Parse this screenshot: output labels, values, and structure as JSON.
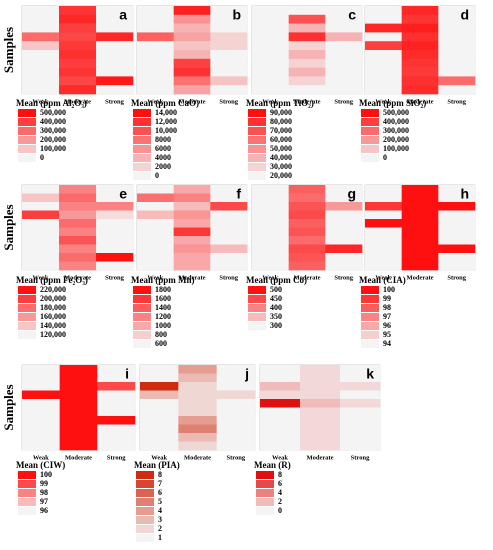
{
  "chart_data": [
    {
      "type": "heatmap",
      "label": "a",
      "y_label": "Samples",
      "categories": [
        "Weak",
        "Moderate",
        "Strong"
      ],
      "color": "#ff1010",
      "legend_title": "Mean (ppm Al₂O₃)",
      "legend_ticks": [
        {
          "value": 500000,
          "label": "500,000"
        },
        {
          "value": 400000,
          "label": "400,000"
        },
        {
          "value": 300000,
          "label": "300,000"
        },
        {
          "value": 200000,
          "label": "200,000"
        },
        {
          "value": 100000,
          "label": "100,000"
        },
        0
      ],
      "values": [
        [
          0,
          420000,
          0
        ],
        [
          0,
          450000,
          0
        ],
        [
          0,
          400000,
          0
        ],
        [
          300000,
          380000,
          450000
        ],
        [
          100000,
          410000,
          0
        ],
        [
          0,
          430000,
          0
        ],
        [
          0,
          400000,
          0
        ],
        [
          0,
          420000,
          0
        ],
        [
          0,
          380000,
          480000
        ],
        [
          0,
          440000,
          0
        ]
      ]
    },
    {
      "type": "heatmap",
      "label": "b",
      "categories": [
        "Weak",
        "Moderate",
        "Strong"
      ],
      "color": "#ff1010",
      "legend_title": "Mean (ppm CaO)",
      "legend_ticks": [
        {
          "value": 14000,
          "label": "14,000"
        },
        {
          "value": 12000,
          "label": "12,000"
        },
        {
          "value": 10000,
          "label": "10,000"
        },
        8000,
        6000,
        4000,
        2000,
        0
      ],
      "values": [
        [
          0,
          13000,
          0
        ],
        [
          0,
          6000,
          0
        ],
        [
          0,
          4000,
          0
        ],
        [
          9000,
          5000,
          2000
        ],
        [
          0,
          3000,
          2000
        ],
        [
          0,
          4000,
          0
        ],
        [
          0,
          11000,
          0
        ],
        [
          0,
          12000,
          0
        ],
        [
          0,
          8000,
          3000
        ],
        [
          0,
          5000,
          0
        ]
      ]
    },
    {
      "type": "heatmap",
      "label": "c",
      "categories": [
        "Weak",
        "Moderate",
        "Strong"
      ],
      "color": "#ff1010",
      "legend_title": "Mean (ppm TiO₂)",
      "legend_ticks": [
        {
          "value": 90000,
          "label": "90,000"
        },
        {
          "value": 80000,
          "label": "80,000"
        },
        {
          "value": 70000,
          "label": "70,000"
        },
        {
          "value": 60000,
          "label": "60,000"
        },
        {
          "value": 50000,
          "label": "50,000"
        },
        {
          "value": 40000,
          "label": "40,000"
        },
        {
          "value": 30000,
          "label": "30,000"
        },
        {
          "value": 20000,
          "label": "20,000"
        }
      ],
      "values": [
        [
          20000,
          20000,
          20000
        ],
        [
          20000,
          70000,
          20000
        ],
        [
          20000,
          40000,
          20000
        ],
        [
          20000,
          80000,
          40000
        ],
        [
          20000,
          30000,
          20000
        ],
        [
          20000,
          40000,
          20000
        ],
        [
          20000,
          30000,
          20000
        ],
        [
          20000,
          40000,
          20000
        ],
        [
          20000,
          30000,
          20000
        ],
        [
          20000,
          20000,
          20000
        ]
      ]
    },
    {
      "type": "heatmap",
      "label": "d",
      "categories": [
        "Weak",
        "Moderate",
        "Strong"
      ],
      "color": "#ff1010",
      "legend_title": "Mean (ppm SiO₂)",
      "legend_ticks": [
        {
          "value": 500000,
          "label": "500,000"
        },
        {
          "value": 400000,
          "label": "400,000"
        },
        {
          "value": 300000,
          "label": "300,000"
        },
        {
          "value": 200000,
          "label": "200,000"
        },
        {
          "value": 100000,
          "label": "100,000"
        },
        0
      ],
      "values": [
        [
          0,
          450000,
          0
        ],
        [
          0,
          420000,
          0
        ],
        [
          450000,
          470000,
          0
        ],
        [
          0,
          430000,
          0
        ],
        [
          400000,
          460000,
          0
        ],
        [
          0,
          440000,
          0
        ],
        [
          0,
          420000,
          0
        ],
        [
          0,
          410000,
          0
        ],
        [
          0,
          430000,
          300000
        ],
        [
          0,
          440000,
          0
        ]
      ]
    },
    {
      "type": "heatmap",
      "label": "e",
      "y_label": "Samples",
      "categories": [
        "Weak",
        "Moderate",
        "Strong"
      ],
      "color": "#ff1010",
      "legend_title": "Mean (ppm Fe₂O₃)",
      "legend_ticks": [
        {
          "value": 220000,
          "label": "220,000"
        },
        {
          "value": 200000,
          "label": "200,000"
        },
        {
          "value": 180000,
          "label": "180,000"
        },
        {
          "value": 160000,
          "label": "160,000"
        },
        {
          "value": 140000,
          "label": "140,000"
        },
        {
          "value": 120000,
          "label": "120,000"
        }
      ],
      "values": [
        [
          120000,
          170000,
          120000
        ],
        [
          140000,
          180000,
          120000
        ],
        [
          120000,
          170000,
          170000
        ],
        [
          200000,
          160000,
          130000
        ],
        [
          120000,
          180000,
          120000
        ],
        [
          120000,
          170000,
          120000
        ],
        [
          120000,
          190000,
          120000
        ],
        [
          120000,
          170000,
          120000
        ],
        [
          120000,
          180000,
          220000
        ],
        [
          120000,
          170000,
          120000
        ]
      ]
    },
    {
      "type": "heatmap",
      "label": "f",
      "categories": [
        "Weak",
        "Moderate",
        "Strong"
      ],
      "color": "#ff1010",
      "legend_title": "Mean (ppm Mn)",
      "legend_ticks": [
        1800,
        1600,
        1400,
        1200,
        1000,
        800,
        600
      ],
      "values": [
        [
          600,
          1000,
          600
        ],
        [
          1300,
          1200,
          600
        ],
        [
          600,
          900,
          1500
        ],
        [
          900,
          1100,
          600
        ],
        [
          600,
          1000,
          600
        ],
        [
          600,
          1600,
          600
        ],
        [
          600,
          1000,
          600
        ],
        [
          600,
          1100,
          900
        ],
        [
          600,
          1000,
          600
        ],
        [
          600,
          1000,
          600
        ]
      ]
    },
    {
      "type": "heatmap",
      "label": "g",
      "categories": [
        "Weak",
        "Moderate",
        "Strong"
      ],
      "color": "#ff1010",
      "legend_title": "Mean (ppm Co)",
      "legend_ticks": [
        500,
        450,
        400,
        350,
        300
      ],
      "values": [
        [
          300,
          430,
          300
        ],
        [
          300,
          420,
          300
        ],
        [
          300,
          440,
          380
        ],
        [
          300,
          450,
          300
        ],
        [
          300,
          430,
          300
        ],
        [
          300,
          440,
          300
        ],
        [
          300,
          420,
          300
        ],
        [
          300,
          450,
          480
        ],
        [
          300,
          440,
          300
        ],
        [
          300,
          430,
          300
        ]
      ]
    },
    {
      "type": "heatmap",
      "label": "h",
      "categories": [
        "Weak",
        "Moderate",
        "Strong"
      ],
      "color": "#ff1010",
      "legend_title": "Mean (CIA)",
      "legend_ticks": [
        100,
        99,
        98,
        97,
        96,
        95,
        94
      ],
      "values": [
        [
          94,
          100,
          94
        ],
        [
          94,
          100,
          94
        ],
        [
          99,
          100,
          100
        ],
        [
          94,
          100,
          94
        ],
        [
          100,
          100,
          94
        ],
        [
          94,
          100,
          94
        ],
        [
          94,
          100,
          94
        ],
        [
          94,
          100,
          100
        ],
        [
          94,
          100,
          94
        ],
        [
          94,
          100,
          94
        ]
      ]
    },
    {
      "type": "heatmap",
      "label": "i",
      "y_label": "Samples",
      "categories": [
        "Weak",
        "Moderate",
        "Strong"
      ],
      "color": "#ff1010",
      "legend_title": "Mean (CIW)",
      "legend_ticks": [
        100,
        99,
        98,
        97,
        96
      ],
      "values": [
        [
          96,
          100,
          96
        ],
        [
          96,
          100,
          96
        ],
        [
          96,
          100,
          99
        ],
        [
          100,
          100,
          96
        ],
        [
          96,
          100,
          96
        ],
        [
          96,
          100,
          96
        ],
        [
          96,
          100,
          100
        ],
        [
          96,
          100,
          96
        ],
        [
          96,
          100,
          96
        ],
        [
          96,
          100,
          96
        ]
      ]
    },
    {
      "type": "heatmap",
      "label": "j",
      "categories": [
        "Weak",
        "Moderate",
        "Strong"
      ],
      "color": "#d02a10",
      "legend_title": "Mean (PIA)",
      "legend_ticks": [
        8,
        7,
        6,
        5,
        4,
        3,
        2,
        1
      ],
      "values": [
        [
          1,
          4,
          1
        ],
        [
          1,
          3,
          1
        ],
        [
          8,
          2,
          1
        ],
        [
          3,
          2,
          2
        ],
        [
          1,
          2,
          1
        ],
        [
          1,
          2,
          1
        ],
        [
          1,
          4,
          1
        ],
        [
          1,
          5,
          1
        ],
        [
          1,
          3,
          1
        ],
        [
          1,
          2,
          1
        ]
      ]
    },
    {
      "type": "heatmap",
      "label": "k",
      "categories": [
        "Weak",
        "Moderate",
        "Strong"
      ],
      "color": "#e01010",
      "legend_title": "Mean (R)",
      "legend_ticks": [
        8,
        6,
        4,
        2,
        0
      ],
      "values": [
        [
          0,
          1,
          0
        ],
        [
          0,
          1,
          0
        ],
        [
          2,
          1,
          1
        ],
        [
          1,
          1,
          0
        ],
        [
          8,
          2,
          1
        ],
        [
          0,
          1,
          0
        ],
        [
          0,
          1,
          0
        ],
        [
          0,
          1,
          0
        ],
        [
          0,
          1,
          0
        ],
        [
          0,
          1,
          0
        ]
      ]
    }
  ]
}
